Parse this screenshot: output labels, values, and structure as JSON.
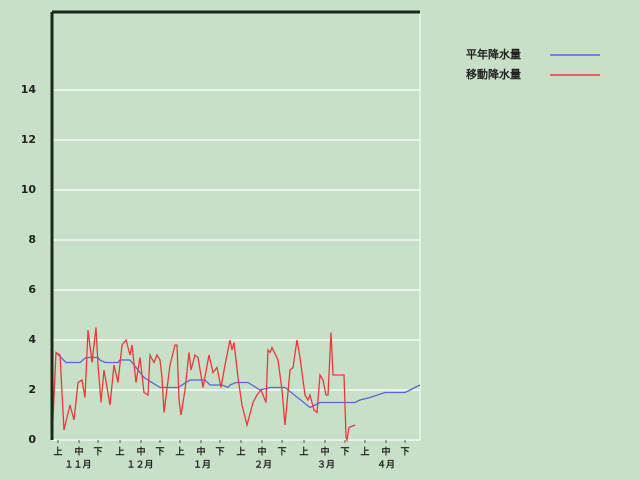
{
  "chart_data": {
    "type": "line",
    "xlim": [
      0,
      184
    ],
    "ylim": [
      0,
      17.12
    ],
    "yticks": [
      0,
      2,
      4,
      6,
      8,
      10,
      12,
      14
    ],
    "grid": true,
    "xticks": [
      {
        "value": 3,
        "label": "上"
      },
      {
        "value": 13.5,
        "label": "中"
      },
      {
        "value": 23,
        "label": "下"
      },
      {
        "value": 34,
        "label": "上"
      },
      {
        "value": 44.5,
        "label": "中"
      },
      {
        "value": 54,
        "label": "下"
      },
      {
        "value": 64,
        "label": "上"
      },
      {
        "value": 74.5,
        "label": "中"
      },
      {
        "value": 84,
        "label": "下"
      },
      {
        "value": 94.5,
        "label": "上"
      },
      {
        "value": 105,
        "label": "中"
      },
      {
        "value": 115,
        "label": "下"
      },
      {
        "value": 126,
        "label": "上"
      },
      {
        "value": 136.5,
        "label": "中"
      },
      {
        "value": 146.5,
        "label": "下"
      },
      {
        "value": 156.5,
        "label": "上"
      },
      {
        "value": 167,
        "label": "中"
      },
      {
        "value": 176.5,
        "label": "下"
      }
    ],
    "month_labels": [
      {
        "value": 13,
        "label": "１１月"
      },
      {
        "value": 44,
        "label": "１２月"
      },
      {
        "value": 75,
        "label": "１月"
      },
      {
        "value": 105.5,
        "label": "２月"
      },
      {
        "value": 137,
        "label": "３月"
      },
      {
        "value": 167,
        "label": "４月"
      }
    ],
    "legend": "top-right",
    "series": [
      {
        "name": "平年降水量",
        "color": "#5a64e0",
        "x": [
          2,
          7,
          14,
          17,
          23,
          24,
          26.5,
          33,
          34,
          39,
          46,
          54,
          63,
          69,
          76.5,
          79,
          85,
          88,
          89,
          92,
          98,
          104,
          109,
          116.5,
          129,
          134,
          151.5,
          154,
          159,
          166.5,
          176.5,
          179,
          184
        ],
        "values": [
          3.5,
          3.1,
          3.1,
          3.3,
          3.3,
          3.2,
          3.1,
          3.1,
          3.2,
          3.2,
          2.5,
          2.1,
          2.1,
          2.4,
          2.4,
          2.2,
          2.2,
          2.1,
          2.2,
          2.3,
          2.3,
          2.0,
          2.1,
          2.1,
          1.3,
          1.5,
          1.5,
          1.6,
          1.7,
          1.9,
          1.9,
          2.0,
          2.2
        ]
      },
      {
        "name": "移動降水量",
        "color": "#ee3838",
        "x": [
          0,
          2,
          4,
          6,
          9,
          11,
          13,
          15,
          16.5,
          18,
          20,
          22,
          23,
          24.5,
          26,
          29,
          31,
          33,
          35,
          37,
          39,
          40,
          42,
          44,
          46,
          48,
          49,
          51,
          52.5,
          54,
          55,
          56,
          59,
          61.5,
          62.5,
          63.5,
          64.5,
          66.5,
          68.5,
          69.5,
          71.5,
          73,
          75.5,
          78.5,
          80.5,
          82.5,
          84.5,
          86.5,
          89,
          90,
          91,
          93,
          95,
          97.5,
          100.5,
          102.5,
          104.5,
          107,
          108,
          109,
          110,
          113,
          115,
          116.5,
          119,
          120.5,
          122.5,
          124,
          126.5,
          128,
          129,
          131,
          132.5,
          134,
          135.5,
          137,
          138,
          139.5,
          140.5,
          143,
          146,
          147,
          147.5,
          148.5,
          151.5
        ],
        "values": [
          0,
          3.5,
          3.4,
          0.4,
          1.4,
          0.8,
          2.3,
          2.4,
          1.7,
          4.4,
          3.1,
          4.5,
          3.0,
          1.5,
          2.8,
          1.4,
          3.0,
          2.3,
          3.8,
          4.0,
          3.4,
          3.8,
          2.3,
          3.3,
          1.9,
          1.8,
          3.4,
          3.1,
          3.4,
          3.2,
          2.5,
          1.1,
          3.0,
          3.8,
          3.8,
          1.6,
          1.0,
          2.0,
          3.5,
          2.8,
          3.4,
          3.3,
          2.1,
          3.4,
          2.7,
          2.9,
          2.1,
          3.0,
          4.0,
          3.6,
          3.9,
          2.5,
          1.4,
          0.6,
          1.5,
          1.8,
          2.0,
          1.5,
          3.6,
          3.5,
          3.7,
          3.2,
          2.0,
          0.6,
          2.8,
          2.9,
          4.0,
          3.3,
          1.8,
          1.6,
          1.8,
          1.2,
          1.1,
          2.6,
          2.4,
          1.8,
          1.8,
          4.3,
          2.6,
          2.6,
          2.6,
          0.1,
          0,
          0.5,
          0.6
        ]
      }
    ]
  }
}
